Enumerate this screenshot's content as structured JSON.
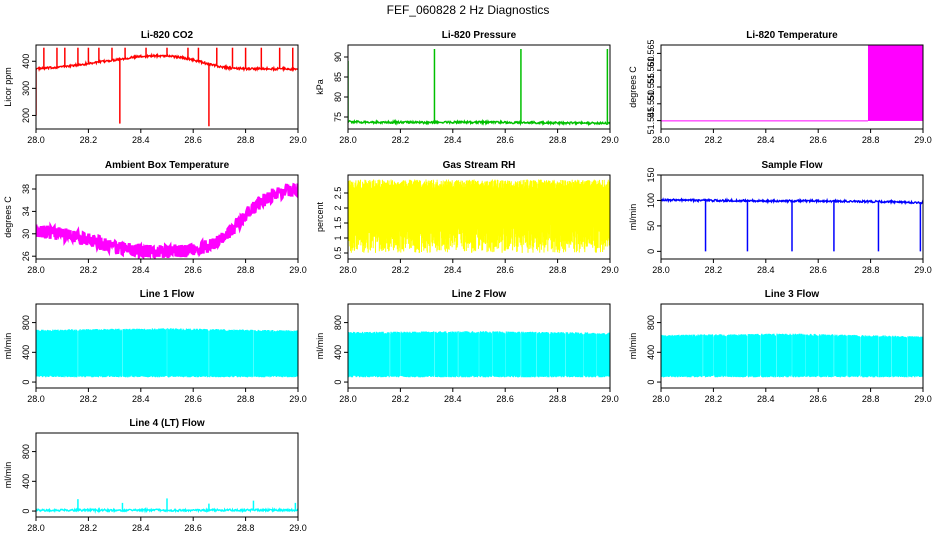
{
  "figure_title": "FEF_060828  2 Hz Diagnostics",
  "chart_data": [
    {
      "type": "line",
      "title": "Li-820 CO2",
      "xlabel": "",
      "ylabel": "Licor ppm",
      "color": "#ff0000",
      "xlim": [
        28.0,
        29.0
      ],
      "ylim": [
        150,
        460
      ],
      "grid": false,
      "xticks": [
        28.0,
        28.2,
        28.4,
        28.6,
        28.8,
        29.0
      ],
      "xtick_labels": [
        "28.0",
        "28.2",
        "28.4",
        "28.6",
        "28.8",
        "29.0"
      ],
      "yticks": [
        200,
        300,
        400
      ],
      "ytick_labels": [
        "200",
        "300",
        "400"
      ],
      "series": [
        {
          "values": [
            [
              28.0,
              372
            ],
            [
              28.05,
              375
            ],
            [
              28.1,
              380
            ],
            [
              28.15,
              385
            ],
            [
              28.2,
              392
            ],
            [
              28.25,
              398
            ],
            [
              28.3,
              405
            ],
            [
              28.35,
              412
            ],
            [
              28.4,
              418
            ],
            [
              28.45,
              420
            ],
            [
              28.5,
              420
            ],
            [
              28.55,
              415
            ],
            [
              28.6,
              405
            ],
            [
              28.65,
              392
            ],
            [
              28.7,
              380
            ],
            [
              28.75,
              374
            ],
            [
              28.8,
              372
            ],
            [
              28.85,
              372
            ],
            [
              28.9,
              372
            ],
            [
              28.95,
              372
            ],
            [
              29.0,
              370
            ]
          ],
          "spikes": [
            [
              28.0,
              200
            ],
            [
              28.03,
              450
            ],
            [
              28.08,
              450
            ],
            [
              28.11,
              450
            ],
            [
              28.16,
              450
            ],
            [
              28.2,
              450
            ],
            [
              28.24,
              450
            ],
            [
              28.29,
              450
            ],
            [
              28.32,
              170
            ],
            [
              28.34,
              450
            ],
            [
              28.42,
              450
            ],
            [
              28.5,
              450
            ],
            [
              28.58,
              450
            ],
            [
              28.62,
              450
            ],
            [
              28.66,
              160
            ],
            [
              28.69,
              450
            ],
            [
              28.75,
              450
            ],
            [
              28.8,
              450
            ],
            [
              28.86,
              450
            ],
            [
              28.93,
              450
            ],
            [
              28.98,
              450
            ]
          ]
        }
      ]
    },
    {
      "type": "line",
      "title": "Li-820 Pressure",
      "xlabel": "",
      "ylabel": "kPa",
      "color": "#00c000",
      "xlim": [
        28.0,
        29.0
      ],
      "ylim": [
        72,
        93
      ],
      "grid": false,
      "xticks": [
        28.0,
        28.2,
        28.4,
        28.6,
        28.8,
        29.0
      ],
      "xtick_labels": [
        "28.0",
        "28.2",
        "28.4",
        "28.6",
        "28.8",
        "29.0"
      ],
      "yticks": [
        75,
        80,
        85,
        90
      ],
      "ytick_labels": [
        "75",
        "80",
        "85",
        "90"
      ],
      "series": [
        {
          "values": [
            [
              28.0,
              73.8
            ],
            [
              28.1,
              73.7
            ],
            [
              28.2,
              73.7
            ],
            [
              28.3,
              73.6
            ],
            [
              28.4,
              73.7
            ],
            [
              28.5,
              73.7
            ],
            [
              28.6,
              73.6
            ],
            [
              28.7,
              73.6
            ],
            [
              28.8,
              73.5
            ],
            [
              28.9,
              73.5
            ],
            [
              29.0,
              73.4
            ]
          ],
          "spikes": [
            [
              28.0,
              89
            ],
            [
              28.33,
              92
            ],
            [
              28.66,
              92
            ],
            [
              28.99,
              92
            ]
          ]
        }
      ]
    },
    {
      "type": "area",
      "title": "Li-820 Temperature",
      "xlabel": "",
      "ylabel": "degrees C",
      "color": "#ff00ff",
      "xlim": [
        28.0,
        29.0
      ],
      "ylim": [
        51.5425,
        51.5675
      ],
      "grid": false,
      "xticks": [
        28.0,
        28.2,
        28.4,
        28.6,
        28.8,
        29.0
      ],
      "xtick_labels": [
        "28.0",
        "28.2",
        "28.4",
        "28.6",
        "28.8",
        "29.0"
      ],
      "yticks": [
        51.545,
        51.55,
        51.555,
        51.56,
        51.565
      ],
      "ytick_labels": [
        "51.545",
        "51.550",
        "51.555",
        "51.560",
        "51.565"
      ],
      "series": [
        {
          "values": [
            [
              28.0,
              51.5449
            ],
            [
              28.79,
              51.5449
            ],
            [
              28.79,
              51.5675
            ],
            [
              29.0,
              51.5675
            ]
          ]
        }
      ]
    },
    {
      "type": "line",
      "title": "Ambient Box Temperature",
      "xlabel": "",
      "ylabel": "degrees C",
      "color": "#ff00ff",
      "xlim": [
        28.0,
        29.0
      ],
      "ylim": [
        25.5,
        40.5
      ],
      "grid": false,
      "xticks": [
        28.0,
        28.2,
        28.4,
        28.6,
        28.8,
        29.0
      ],
      "xtick_labels": [
        "28.0",
        "28.2",
        "28.4",
        "28.6",
        "28.8",
        "29.0"
      ],
      "yticks": [
        26,
        30,
        34,
        38
      ],
      "ytick_labels": [
        "26",
        "30",
        "34",
        "38"
      ],
      "series": [
        {
          "values": [
            [
              28.0,
              31.2
            ],
            [
              28.05,
              31.0
            ],
            [
              28.1,
              30.6
            ],
            [
              28.15,
              30.2
            ],
            [
              28.2,
              29.6
            ],
            [
              28.25,
              29.0
            ],
            [
              28.3,
              28.4
            ],
            [
              28.35,
              28.0
            ],
            [
              28.4,
              27.7
            ],
            [
              28.45,
              27.6
            ],
            [
              28.5,
              27.6
            ],
            [
              28.55,
              27.6
            ],
            [
              28.6,
              27.8
            ],
            [
              28.65,
              28.4
            ],
            [
              28.7,
              29.6
            ],
            [
              28.75,
              31.5
            ],
            [
              28.8,
              34.0
            ],
            [
              28.85,
              36.2
            ],
            [
              28.9,
              37.6
            ],
            [
              28.95,
              38.4
            ],
            [
              29.0,
              38.6
            ]
          ],
          "noise": 1.2
        }
      ]
    },
    {
      "type": "line",
      "title": "Gas Stream RH",
      "xlabel": "",
      "ylabel": "percent",
      "color": "#ffff00",
      "xlim": [
        28.0,
        29.0
      ],
      "ylim": [
        0.3,
        3.1
      ],
      "grid": false,
      "xticks": [
        28.0,
        28.2,
        28.4,
        28.6,
        28.8,
        29.0
      ],
      "xtick_labels": [
        "28.0",
        "28.2",
        "28.4",
        "28.6",
        "28.8",
        "29.0"
      ],
      "yticks": [
        0.5,
        1.0,
        1.5,
        2.0,
        2.5
      ],
      "ytick_labels": [
        "0.5",
        "1",
        "1.5",
        "2",
        "2.5"
      ],
      "series": [
        {
          "values": [
            [
              28.0,
              2.8
            ],
            [
              28.1,
              2.8
            ],
            [
              28.2,
              2.8
            ],
            [
              28.3,
              2.8
            ],
            [
              28.4,
              2.8
            ],
            [
              28.5,
              2.8
            ],
            [
              28.6,
              2.8
            ],
            [
              28.7,
              2.8
            ],
            [
              28.8,
              2.8
            ],
            [
              28.9,
              2.8
            ],
            [
              29.0,
              2.8
            ]
          ],
          "lower": [
            0.5,
            1.5
          ],
          "upper": [
            2.6,
            2.95
          ]
        }
      ]
    },
    {
      "type": "line",
      "title": "Sample Flow",
      "xlabel": "",
      "ylabel": "ml/min",
      "color": "#0000ff",
      "xlim": [
        28.0,
        29.0
      ],
      "ylim": [
        -15,
        150
      ],
      "grid": false,
      "xticks": [
        28.0,
        28.2,
        28.4,
        28.6,
        28.8,
        29.0
      ],
      "xtick_labels": [
        "28.0",
        "28.2",
        "28.4",
        "28.6",
        "28.8",
        "29.0"
      ],
      "yticks": [
        0,
        50,
        100,
        150
      ],
      "ytick_labels": [
        "0",
        "50",
        "100",
        "150"
      ],
      "series": [
        {
          "values": [
            [
              28.0,
              101
            ],
            [
              28.2,
              100
            ],
            [
              28.4,
              99
            ],
            [
              28.6,
              99
            ],
            [
              28.8,
              98
            ],
            [
              29.0,
              96
            ]
          ],
          "drops": [
            28.17,
            28.33,
            28.5,
            28.66,
            28.83,
            28.99
          ]
        }
      ]
    },
    {
      "type": "area",
      "title": "Line 1 Flow",
      "xlabel": "",
      "ylabel": "ml/min",
      "color": "#00ffff",
      "xlim": [
        28.0,
        29.0
      ],
      "ylim": [
        -80,
        1050
      ],
      "grid": false,
      "xticks": [
        28.0,
        28.2,
        28.4,
        28.6,
        28.8,
        29.0
      ],
      "xtick_labels": [
        "28.0",
        "28.2",
        "28.4",
        "28.6",
        "28.8",
        "29.0"
      ],
      "yticks": [
        0,
        400,
        800
      ],
      "ytick_labels": [
        "0",
        "400",
        "800"
      ],
      "series": [
        {
          "values": [
            [
              28.0,
              690
            ],
            [
              28.5,
              710
            ],
            [
              29.0,
              680
            ]
          ],
          "base": 90,
          "gaps": [
            28.16,
            28.33,
            28.5,
            28.66,
            28.83
          ]
        }
      ]
    },
    {
      "type": "area",
      "title": "Line 2 Flow",
      "xlabel": "",
      "ylabel": "ml/min",
      "color": "#00ffff",
      "xlim": [
        28.0,
        29.0
      ],
      "ylim": [
        -80,
        1050
      ],
      "grid": false,
      "xticks": [
        28.0,
        28.2,
        28.4,
        28.6,
        28.8,
        29.0
      ],
      "xtick_labels": [
        "28.0",
        "28.2",
        "28.4",
        "28.6",
        "28.8",
        "29.0"
      ],
      "yticks": [
        0,
        400,
        800
      ],
      "ytick_labels": [
        "0",
        "400",
        "800"
      ],
      "series": [
        {
          "values": [
            [
              28.0,
              660
            ],
            [
              28.5,
              670
            ],
            [
              29.0,
              650
            ]
          ],
          "base": 90,
          "gaps": [
            28.16,
            28.2,
            28.33,
            28.38,
            28.42,
            28.5,
            28.55,
            28.6,
            28.66,
            28.72,
            28.77,
            28.83,
            28.9,
            28.95
          ]
        }
      ]
    },
    {
      "type": "area",
      "title": "Line 3 Flow",
      "xlabel": "",
      "ylabel": "ml/min",
      "color": "#00ffff",
      "xlim": [
        28.0,
        29.0
      ],
      "ylim": [
        -80,
        1050
      ],
      "grid": false,
      "xticks": [
        28.0,
        28.2,
        28.4,
        28.6,
        28.8,
        29.0
      ],
      "xtick_labels": [
        "28.0",
        "28.2",
        "28.4",
        "28.6",
        "28.8",
        "29.0"
      ],
      "yticks": [
        0,
        400,
        800
      ],
      "ytick_labels": [
        "0",
        "400",
        "800"
      ],
      "series": [
        {
          "values": [
            [
              28.0,
              620
            ],
            [
              28.5,
              640
            ],
            [
              29.0,
              600
            ]
          ],
          "base": 90,
          "gaps": [
            28.16,
            28.2,
            28.25,
            28.33,
            28.38,
            28.44,
            28.5,
            28.55,
            28.6,
            28.66,
            28.71,
            28.76,
            28.83,
            28.88,
            28.94
          ]
        }
      ]
    },
    {
      "type": "line",
      "title": "Line 4 (LT) Flow",
      "xlabel": "",
      "ylabel": "ml/min",
      "color": "#00ffff",
      "xlim": [
        28.0,
        29.0
      ],
      "ylim": [
        -80,
        1050
      ],
      "grid": false,
      "xticks": [
        28.0,
        28.2,
        28.4,
        28.6,
        28.8,
        29.0
      ],
      "xtick_labels": [
        "28.0",
        "28.2",
        "28.4",
        "28.6",
        "28.8",
        "29.0"
      ],
      "yticks": [
        0,
        400,
        800
      ],
      "ytick_labels": [
        "0",
        "400",
        "800"
      ],
      "series": [
        {
          "values": [
            [
              28.0,
              12
            ],
            [
              28.5,
              12
            ],
            [
              29.0,
              12
            ]
          ],
          "spikes": [
            [
              28.16,
              160
            ],
            [
              28.33,
              110
            ],
            [
              28.5,
              170
            ],
            [
              28.66,
              100
            ],
            [
              28.83,
              140
            ],
            [
              28.99,
              110
            ]
          ]
        }
      ]
    }
  ]
}
